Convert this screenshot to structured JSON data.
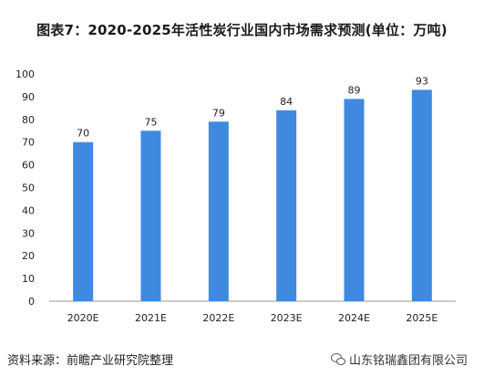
{
  "title": "图表7：2020-2025年活性炭行业国内市场需求预测(单位：万吨)",
  "source": "资料来源：前瞻产业研究院整理",
  "watermark_account": "山东铭瑞鑫团有限公司",
  "colors": {
    "bar": "#3f8ae0",
    "axis": "#999999",
    "text": "#222222"
  },
  "chart_data": {
    "type": "bar",
    "title": "图表7：2020-2025年活性炭行业国内市场需求预测(单位：万吨)",
    "categories": [
      "2020E",
      "2021E",
      "2022E",
      "2023E",
      "2024E",
      "2025E"
    ],
    "values": [
      70,
      75,
      79,
      84,
      89,
      93
    ],
    "ylim": [
      0,
      100
    ],
    "yticks": [
      0,
      10,
      20,
      30,
      40,
      50,
      60,
      70,
      80,
      90,
      100
    ],
    "grid": false,
    "legend": "none",
    "data_labels": true
  }
}
